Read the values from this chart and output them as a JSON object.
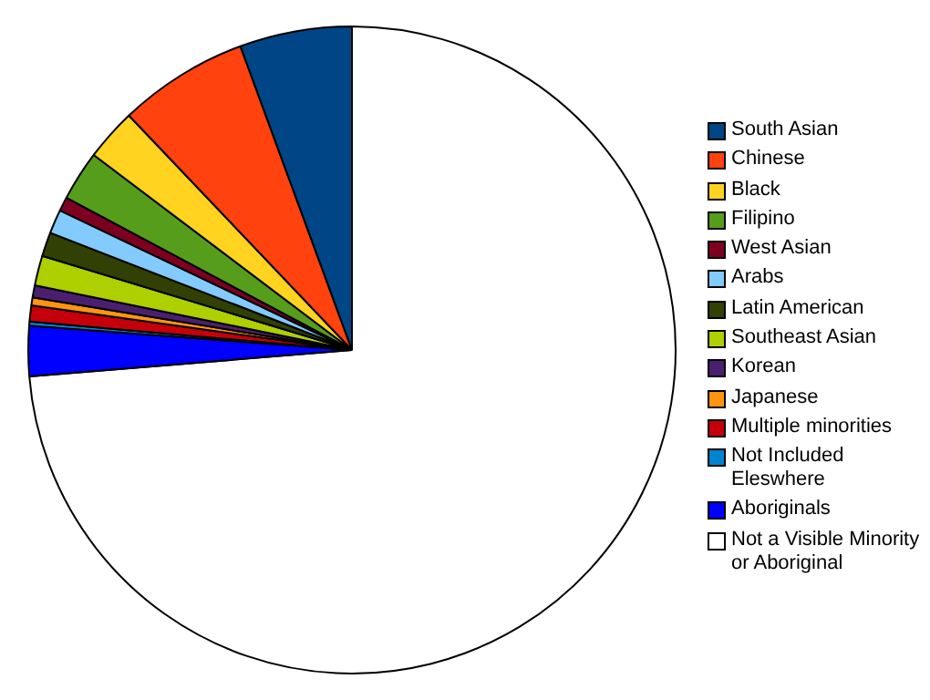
{
  "chart_data": {
    "type": "pie",
    "categories": [
      "South Asian",
      "Chinese",
      "Black",
      "Filipino",
      "West Asian",
      "Arabs",
      "Latin American",
      "Southeast Asian",
      "Korean",
      "Japanese",
      "Multiple minorities",
      "Not Included Eleswhere",
      "Aboriginals",
      "Not a Visible Minority or Aboriginal"
    ],
    "values": [
      5.6,
      6.5,
      2.6,
      2.5,
      0.7,
      1.2,
      1.2,
      1.5,
      0.6,
      0.4,
      0.8,
      0.2,
      2.5,
      73.7
    ],
    "colors": [
      "#004586",
      "#ff420e",
      "#ffd320",
      "#579d1c",
      "#7e0021",
      "#83caff",
      "#314004",
      "#aecf00",
      "#4b1f6f",
      "#ff950e",
      "#c5000b",
      "#0084d1",
      "#0000ff",
      "#ffffff"
    ],
    "legend": "right"
  }
}
